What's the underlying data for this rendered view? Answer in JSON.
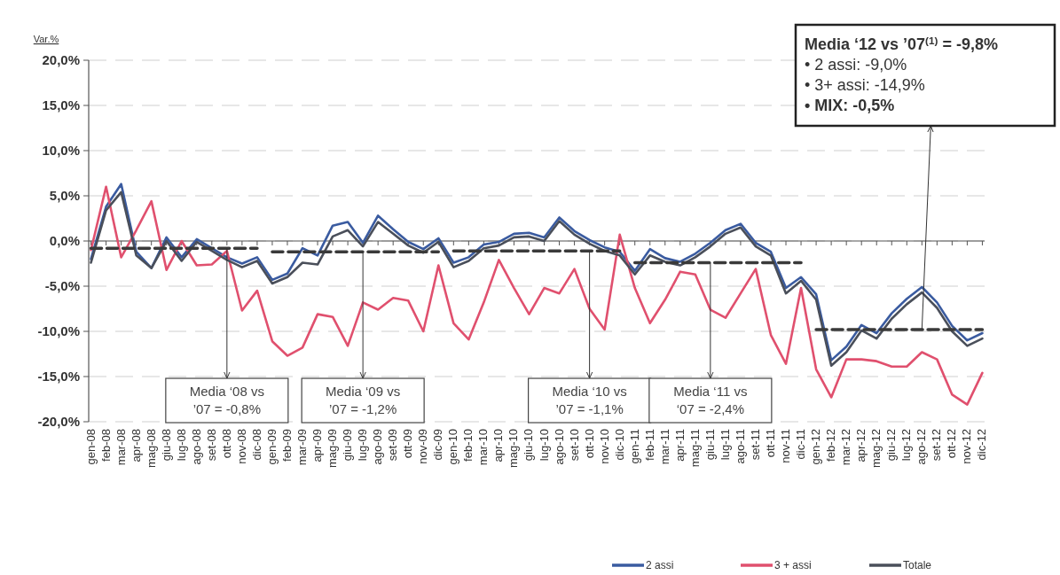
{
  "chart_data": {
    "type": "line",
    "ylabel": "Var.%",
    "categories": [
      "gen-08",
      "feb-08",
      "mar-08",
      "apr-08",
      "mag-08",
      "giu-08",
      "lug-08",
      "ago-08",
      "set-08",
      "ott-08",
      "nov-08",
      "dic-08",
      "gen-09",
      "feb-09",
      "mar-09",
      "apr-09",
      "mag-09",
      "giu-09",
      "lug-09",
      "ago-09",
      "set-09",
      "ott-09",
      "nov-09",
      "dic-09",
      "gen-10",
      "feb-10",
      "mar-10",
      "apr-10",
      "mag-10",
      "giu-10",
      "lug-10",
      "ago-10",
      "set-10",
      "ott-10",
      "nov-10",
      "dic-10",
      "gen-11",
      "feb-11",
      "mar-11",
      "apr-11",
      "mag-11",
      "giu-11",
      "lug-11",
      "ago-11",
      "set-11",
      "ott-11",
      "nov-11",
      "dic-11",
      "gen-12",
      "feb-12",
      "mar-12",
      "apr-12",
      "mag-12",
      "giu-12",
      "lug-12",
      "ago-12",
      "set-12",
      "ott-12",
      "nov-12",
      "dic-12"
    ],
    "series": [
      {
        "name": "2 assi",
        "color": "#3a5ba0",
        "line_style": "solid",
        "values": [
          -2.0,
          3.8,
          6.3,
          -1.2,
          -3.0,
          0.4,
          -1.8,
          0.2,
          -0.8,
          -1.8,
          -2.5,
          -1.8,
          -4.3,
          -3.6,
          -0.8,
          -1.6,
          1.7,
          2.1,
          -0.2,
          2.8,
          1.3,
          -0.1,
          -0.9,
          0.3,
          -2.4,
          -1.8,
          -0.4,
          -0.1,
          0.8,
          0.9,
          0.4,
          2.6,
          1.1,
          0.1,
          -0.7,
          -1.2,
          -3.3,
          -0.9,
          -1.9,
          -2.3,
          -1.4,
          -0.2,
          1.2,
          1.9,
          -0.2,
          -1.2,
          -5.2,
          -4.0,
          -5.9,
          -13.2,
          -11.7,
          -9.3,
          -10.2,
          -8.0,
          -6.4,
          -5.1,
          -6.8,
          -9.4,
          -11.0,
          -10.2
        ]
      },
      {
        "name": "3 + assi",
        "color": "#e0506e",
        "line_style": "solid",
        "values": [
          -1.0,
          6.0,
          -1.8,
          1.2,
          4.4,
          -3.2,
          0.0,
          -2.7,
          -2.6,
          -1.1,
          -7.7,
          -5.5,
          -11.1,
          -12.7,
          -11.8,
          -8.1,
          -8.4,
          -11.6,
          -6.8,
          -7.6,
          -6.3,
          -6.6,
          -10.0,
          -2.7,
          -9.1,
          -10.9,
          -6.8,
          -2.1,
          -5.2,
          -8.1,
          -5.2,
          -5.8,
          -3.1,
          -7.5,
          -9.8,
          0.7,
          -5.2,
          -9.1,
          -6.5,
          -3.4,
          -3.7,
          -7.6,
          -8.5,
          -5.8,
          -3.1,
          -10.4,
          -13.6,
          -5.2,
          -14.2,
          -17.3,
          -13.1,
          -13.1,
          -13.3,
          -13.9,
          -13.9,
          -12.3,
          -13.1,
          -17.0,
          -18.1,
          -14.6
        ]
      },
      {
        "name": "Totale",
        "color": "#4a4f5a",
        "line_style": "solid",
        "values": [
          -2.4,
          3.4,
          5.4,
          -1.6,
          -3.0,
          0.0,
          -2.2,
          -0.1,
          -1.1,
          -2.1,
          -2.9,
          -2.2,
          -4.7,
          -4.0,
          -2.4,
          -2.6,
          0.5,
          1.2,
          -0.6,
          2.1,
          0.8,
          -0.5,
          -1.3,
          -0.1,
          -2.9,
          -2.2,
          -0.8,
          -0.5,
          0.4,
          0.5,
          0.0,
          2.2,
          0.7,
          -0.3,
          -1.1,
          -1.6,
          -3.7,
          -1.6,
          -2.3,
          -2.7,
          -1.8,
          -0.6,
          0.8,
          1.5,
          -0.6,
          -1.6,
          -5.8,
          -4.4,
          -6.5,
          -13.8,
          -12.3,
          -9.9,
          -10.8,
          -8.6,
          -7.0,
          -5.7,
          -7.4,
          -10.0,
          -11.6,
          -10.8
        ]
      },
      {
        "color": "#3a3a3a",
        "line_style": "dashed",
        "values": [
          -0.8,
          -0.8,
          -0.8,
          -0.8,
          -0.8,
          -0.8,
          -0.8,
          -0.8,
          -0.8,
          -0.8,
          -0.8,
          -0.8,
          null,
          null,
          null,
          null,
          null,
          null,
          null,
          null,
          null,
          null,
          null,
          null,
          null,
          null,
          null,
          null,
          null,
          null,
          null,
          null,
          null,
          null,
          null,
          null,
          null,
          null,
          null,
          null,
          null,
          null,
          null,
          null,
          null,
          null,
          null,
          null,
          null,
          null,
          null,
          null,
          null,
          null,
          null,
          null,
          null,
          null,
          null,
          null
        ]
      },
      {
        "color": "#3a3a3a",
        "line_style": "dashed",
        "values": [
          null,
          null,
          null,
          null,
          null,
          null,
          null,
          null,
          null,
          null,
          null,
          null,
          -1.2,
          -1.2,
          -1.2,
          -1.2,
          -1.2,
          -1.2,
          -1.2,
          -1.2,
          -1.2,
          -1.2,
          -1.2,
          -1.2,
          null,
          null,
          null,
          null,
          null,
          null,
          null,
          null,
          null,
          null,
          null,
          null,
          null,
          null,
          null,
          null,
          null,
          null,
          null,
          null,
          null,
          null,
          null,
          null,
          null,
          null,
          null,
          null,
          null,
          null,
          null,
          null,
          null,
          null,
          null,
          null
        ]
      },
      {
        "color": "#3a3a3a",
        "line_style": "dashed",
        "values": [
          null,
          null,
          null,
          null,
          null,
          null,
          null,
          null,
          null,
          null,
          null,
          null,
          null,
          null,
          null,
          null,
          null,
          null,
          null,
          null,
          null,
          null,
          null,
          null,
          -1.1,
          -1.1,
          -1.1,
          -1.1,
          -1.1,
          -1.1,
          -1.1,
          -1.1,
          -1.1,
          -1.1,
          -1.1,
          -1.1,
          null,
          null,
          null,
          null,
          null,
          null,
          null,
          null,
          null,
          null,
          null,
          null,
          null,
          null,
          null,
          null,
          null,
          null,
          null,
          null,
          null,
          null,
          null,
          null
        ]
      },
      {
        "color": "#3a3a3a",
        "line_style": "dashed",
        "values": [
          null,
          null,
          null,
          null,
          null,
          null,
          null,
          null,
          null,
          null,
          null,
          null,
          null,
          null,
          null,
          null,
          null,
          null,
          null,
          null,
          null,
          null,
          null,
          null,
          null,
          null,
          null,
          null,
          null,
          null,
          null,
          null,
          null,
          null,
          null,
          null,
          -2.4,
          -2.4,
          -2.4,
          -2.4,
          -2.4,
          -2.4,
          -2.4,
          -2.4,
          -2.4,
          -2.4,
          -2.4,
          -2.4,
          null,
          null,
          null,
          null,
          null,
          null,
          null,
          null,
          null,
          null,
          null,
          null
        ]
      },
      {
        "color": "#3a3a3a",
        "line_style": "dashed",
        "values": [
          null,
          null,
          null,
          null,
          null,
          null,
          null,
          null,
          null,
          null,
          null,
          null,
          null,
          null,
          null,
          null,
          null,
          null,
          null,
          null,
          null,
          null,
          null,
          null,
          null,
          null,
          null,
          null,
          null,
          null,
          null,
          null,
          null,
          null,
          null,
          null,
          null,
          null,
          null,
          null,
          null,
          null,
          null,
          null,
          null,
          null,
          null,
          null,
          -9.8,
          -9.8,
          -9.8,
          -9.8,
          -9.8,
          -9.8,
          -9.8,
          -9.8,
          -9.8,
          -9.8,
          -9.8,
          -9.8
        ]
      }
    ],
    "ylim": [
      -20,
      20
    ],
    "yticks": [
      {
        "value": -20,
        "label": "-20,0%"
      },
      {
        "value": -15,
        "label": "-15,0%"
      },
      {
        "value": -10,
        "label": "-10,0%"
      },
      {
        "value": -5,
        "label": "-5,0%"
      },
      {
        "value": 0,
        "label": "0,0%"
      },
      {
        "value": 5,
        "label": "5,0%"
      },
      {
        "value": 10,
        "label": "10,0%"
      },
      {
        "value": 15,
        "label": "15,0%"
      },
      {
        "value": 20,
        "label": "20,0%"
      }
    ],
    "grid": "y",
    "legend": "bottom right",
    "marker": "none",
    "annotations": [
      {
        "text": "Media ‘08 vs\n’07 = -0,8%",
        "x": "ott-08",
        "y": -0.8
      },
      {
        "text": "Media ‘09 vs\n’07 = -1,2%",
        "x": "lug-09",
        "y": -1.2
      },
      {
        "text": "Media ‘10 vs\n’07 = -1,1%",
        "x": "ott-10",
        "y": -1.1
      },
      {
        "text": "Media ‘11 vs\n‘07 = -2,4%",
        "x": "giu-11",
        "y": -2.4
      },
      "Media ‘12 vs ’07$^{(1)}$ = -9,8%",
      "• 2 assi: -9,0%",
      "• 3+ assi: -14,9%",
      "• MIX: -0,5%"
    ]
  }
}
